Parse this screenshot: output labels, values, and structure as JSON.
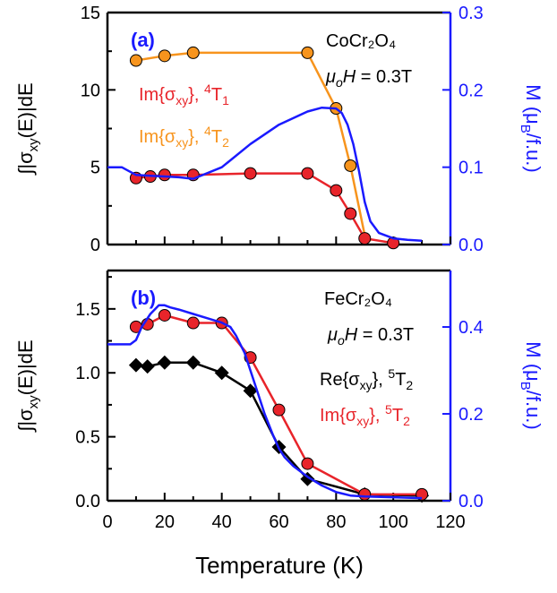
{
  "colors": {
    "orange": "#f7941d",
    "red": "#e8242a",
    "blue": "#1a1aff",
    "black": "#000000",
    "text_red": "#e8242a"
  },
  "chart_data": [
    {
      "panel_label": "(a)",
      "type": "line",
      "material": "CoCr₂O₄",
      "field_label": {
        "mu": "μ",
        "sub": "o",
        "H": "H",
        "value": " = 0.3T"
      },
      "xlim": [
        0,
        120
      ],
      "ylim": [
        0,
        15
      ],
      "y2lim": [
        0,
        0.3
      ],
      "yticks": [
        "0",
        "5",
        "10",
        "15"
      ],
      "y2ticks": [
        "0.0",
        "0.1",
        "0.2",
        "0.3"
      ],
      "ylabel": {
        "pre": "∫|σ",
        "sub": "xy",
        "post": "(E)|dE"
      },
      "y2label": {
        "pre": "M (μ",
        "sub": "B",
        "post": "/f.u.)"
      },
      "series": [
        {
          "name": "Im{σxy}, 4T2",
          "label": {
            "pre": "Im{σ",
            "sub": "xy",
            "mid": "}, ",
            "sup": "4",
            "post": "T",
            "sub2": "2"
          },
          "color": "orange",
          "x": [
            10,
            20,
            30,
            70,
            80,
            85,
            90,
            92
          ],
          "y": [
            11.9,
            12.2,
            12.4,
            12.4,
            8.8,
            5.1,
            0.6,
            0.2
          ],
          "markers_count": 6
        },
        {
          "name": "Im{σxy}, 4T1",
          "label": {
            "pre": "Im{σ",
            "sub": "xy",
            "mid": "}, ",
            "sup": "4",
            "post": "T",
            "sub2": "1"
          },
          "color": "red",
          "x": [
            10,
            15,
            20,
            30,
            50,
            70,
            80,
            85,
            90,
            100
          ],
          "y": [
            4.3,
            4.4,
            4.5,
            4.5,
            4.6,
            4.6,
            3.5,
            2.0,
            0.4,
            0.1
          ]
        },
        {
          "name": "M",
          "axis": "y2",
          "color": "blue",
          "style": "line",
          "x": [
            0,
            5,
            10,
            15,
            20,
            25,
            30,
            40,
            50,
            60,
            70,
            75,
            80,
            82,
            84,
            86,
            88,
            90,
            92,
            95,
            100,
            105,
            110
          ],
          "y": [
            0.1,
            0.1,
            0.09,
            0.089,
            0.088,
            0.087,
            0.085,
            0.1,
            0.13,
            0.155,
            0.172,
            0.177,
            0.176,
            0.17,
            0.155,
            0.13,
            0.095,
            0.055,
            0.03,
            0.015,
            0.008,
            0.006,
            0.005
          ]
        }
      ]
    },
    {
      "panel_label": "(b)",
      "type": "line",
      "material": "FeCr₂O₄",
      "field_label": {
        "mu": "μ",
        "sub": "o",
        "H": "H",
        "value": " = 0.3T"
      },
      "xlim": [
        0,
        120
      ],
      "ylim": [
        0,
        1.8
      ],
      "y2lim": [
        0,
        0.53
      ],
      "xticks": [
        "0",
        "10",
        "20",
        "30",
        "40",
        "50",
        "60",
        "70",
        "80",
        "90",
        "100",
        "110",
        "120"
      ],
      "yticks": [
        "0.0",
        "0.5",
        "1.0",
        "1.5"
      ],
      "y2ticks": [
        "0.0",
        "0.2",
        "0.4"
      ],
      "ylabel": {
        "pre": "∫|σ",
        "sub": "xy",
        "post": "(E)|dE"
      },
      "y2label": {
        "pre": "M (μ",
        "sub": "B",
        "post": "/f.u.)"
      },
      "xlabel": "Temperature (K)",
      "series": [
        {
          "name": "Re{σxy}, 5T2",
          "label": {
            "pre": "Re{σ",
            "sub": "xy",
            "mid": "}, ",
            "sup": "5",
            "post": "T",
            "sub2": "2"
          },
          "color": "black",
          "marker": "diamond",
          "x": [
            10,
            14,
            20,
            30,
            40,
            50,
            60,
            70,
            90,
            110
          ],
          "y": [
            1.06,
            1.05,
            1.08,
            1.08,
            1.0,
            0.86,
            0.42,
            0.17,
            0.05,
            0.04
          ]
        },
        {
          "name": "Im{σxy}, 5T2",
          "label": {
            "pre": "Im{σ",
            "sub": "xy",
            "mid": "}, ",
            "sup": "5",
            "post": "T",
            "sub2": "2"
          },
          "color": "red",
          "marker": "circle",
          "x": [
            10,
            14,
            20,
            30,
            40,
            50,
            60,
            70,
            90,
            110
          ],
          "y": [
            1.36,
            1.38,
            1.45,
            1.39,
            1.39,
            1.12,
            0.71,
            0.29,
            0.05,
            0.05
          ]
        },
        {
          "name": "M",
          "axis": "y2",
          "color": "blue",
          "style": "line",
          "x": [
            0,
            5,
            8,
            10,
            12,
            15,
            18,
            20,
            22,
            25,
            30,
            35,
            40,
            43,
            45,
            48,
            50,
            52,
            55,
            58,
            60,
            62,
            65,
            70,
            75,
            80,
            85,
            90,
            100,
            110
          ],
          "y": [
            0.36,
            0.36,
            0.36,
            0.37,
            0.4,
            0.43,
            0.45,
            0.45,
            0.445,
            0.44,
            0.43,
            0.42,
            0.41,
            0.4,
            0.38,
            0.34,
            0.3,
            0.26,
            0.2,
            0.15,
            0.12,
            0.1,
            0.08,
            0.055,
            0.035,
            0.02,
            0.012,
            0.01,
            0.008,
            0.006
          ]
        }
      ]
    }
  ]
}
